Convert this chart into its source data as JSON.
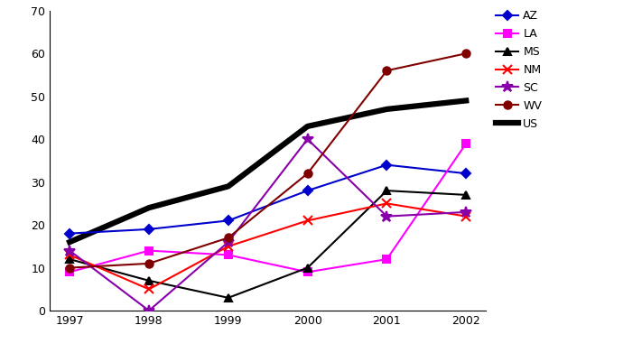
{
  "years": [
    1997,
    1998,
    1999,
    2000,
    2001,
    2002
  ],
  "series": {
    "AZ": {
      "values": [
        18,
        19,
        21,
        28,
        34,
        32
      ],
      "color": "#0000CC",
      "marker": "D",
      "linewidth": 1.5,
      "markersize": 5,
      "zorder": 4
    },
    "LA": {
      "values": [
        9,
        14,
        13,
        9,
        12,
        39
      ],
      "color": "#FF00FF",
      "marker": "s",
      "linewidth": 1.5,
      "markersize": 6,
      "zorder": 4
    },
    "MS": {
      "values": [
        12,
        7,
        3,
        10,
        28,
        27
      ],
      "color": "#000000",
      "marker": "^",
      "linewidth": 1.5,
      "markersize": 6,
      "zorder": 4
    },
    "NM": {
      "values": [
        13,
        5,
        15,
        21,
        25,
        22
      ],
      "color": "#FF0000",
      "marker": "x",
      "linewidth": 1.5,
      "markersize": 7,
      "zorder": 4
    },
    "SC": {
      "values": [
        14,
        0,
        16,
        40,
        22,
        23
      ],
      "color": "#8800AA",
      "marker": "*",
      "linewidth": 1.5,
      "markersize": 9,
      "zorder": 4
    },
    "WV": {
      "values": [
        10,
        11,
        17,
        32,
        56,
        60
      ],
      "color": "#800000",
      "marker": "o",
      "linewidth": 1.5,
      "markersize": 6,
      "zorder": 4
    },
    "US": {
      "values": [
        16,
        24,
        29,
        43,
        47,
        49
      ],
      "color": "#000000",
      "marker": "None",
      "linewidth": 4.5,
      "markersize": 0,
      "zorder": 2
    }
  },
  "ylim": [
    0,
    70
  ],
  "yticks": [
    0,
    10,
    20,
    30,
    40,
    50,
    60,
    70
  ],
  "xticks": [
    1997,
    1998,
    1999,
    2000,
    2001,
    2002
  ],
  "background_color": "#FFFFFF",
  "legend_order": [
    "AZ",
    "LA",
    "MS",
    "NM",
    "SC",
    "WV",
    "US"
  ],
  "figwidth": 6.9,
  "figheight": 3.91,
  "dpi": 100
}
